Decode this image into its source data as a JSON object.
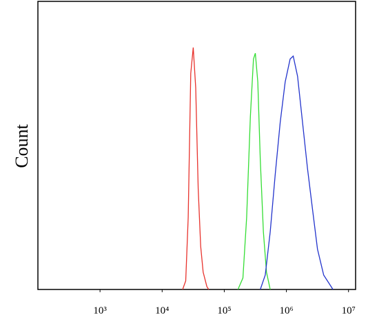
{
  "chart_data": {
    "type": "line",
    "y_label": "Count",
    "xscale": "log",
    "xlim": [
      100,
      13000000
    ],
    "ylim": [
      0,
      100
    ],
    "xticks": [
      {
        "value": 1000,
        "label": "10³"
      },
      {
        "value": 10000,
        "label": "10⁴"
      },
      {
        "value": 100000,
        "label": "10⁵"
      },
      {
        "value": 1000000,
        "label": "10⁶"
      },
      {
        "value": 10000000,
        "label": "10⁷"
      }
    ],
    "grid": false,
    "series": [
      {
        "color": "#e8322c",
        "x": [
          21380,
          23990,
          26300,
          28840,
          31620,
          34670,
          38020,
          41690,
          45710,
          52480,
          56230
        ],
        "values": [
          0,
          3,
          25,
          75,
          84,
          70,
          35,
          15,
          6,
          1,
          0
        ]
      },
      {
        "color": "#33dd33",
        "x": [
          166000,
          199500,
          229100,
          263000,
          295100,
          316200,
          346700,
          380200,
          426600,
          478600,
          549500
        ],
        "values": [
          0,
          4,
          25,
          60,
          80,
          82,
          72,
          45,
          20,
          6,
          0
        ]
      },
      {
        "color": "#2233cc",
        "x": [
          380200,
          457100,
          549500,
          660700,
          794300,
          955000,
          1148000,
          1288000,
          1514000,
          1820000,
          2188000,
          2630000,
          3162000,
          3981000,
          5623000
        ],
        "values": [
          0,
          5,
          20,
          40,
          58,
          72,
          80,
          81,
          74,
          58,
          42,
          28,
          14,
          5,
          0
        ]
      }
    ]
  }
}
